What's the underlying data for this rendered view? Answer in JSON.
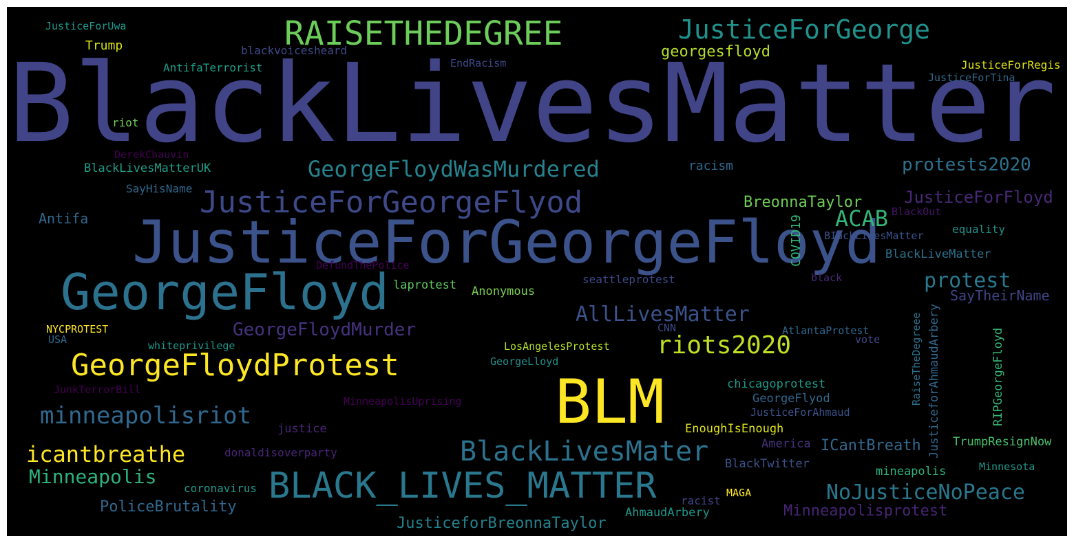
{
  "cloud": {
    "background": "#000000",
    "words": [
      {
        "text": "BlackLivesMatter",
        "color": "#414487"
      },
      {
        "text": "JusticeForGeorgeFloyd",
        "color": "#3b528b"
      },
      {
        "text": "GeorgeFloyd",
        "color": "#2c728e"
      },
      {
        "text": "BLM",
        "color": "#fde725"
      },
      {
        "text": "RAISETHEDEGREE",
        "color": "#6ccd5a"
      },
      {
        "text": "JusticeForGeorge",
        "color": "#21918c"
      },
      {
        "text": "JusticeForGeorgeFlyod",
        "color": "#3e4989"
      },
      {
        "text": "GeorgeFloydProtest",
        "color": "#fde725"
      },
      {
        "text": "BLACK_LIVES_MATTER",
        "color": "#2a788e"
      },
      {
        "text": "BlackLivesMater",
        "color": "#2c728e"
      },
      {
        "text": "GeorgeFloydWasMurdered",
        "color": "#26828e"
      },
      {
        "text": "riots2020",
        "color": "#c2df23"
      },
      {
        "text": "minneapolisriot",
        "color": "#31688e"
      },
      {
        "text": "icantbreathe",
        "color": "#fde725"
      },
      {
        "text": "Minneapolis",
        "color": "#2db27d"
      },
      {
        "text": "NoJusticeNoPeace",
        "color": "#2a788e"
      },
      {
        "text": "AllLivesMatter",
        "color": "#3b528b"
      },
      {
        "text": "GeorgeFloydMurder",
        "color": "#46327e"
      },
      {
        "text": "ACAB",
        "color": "#35b779"
      },
      {
        "text": "protest",
        "color": "#2a788e"
      },
      {
        "text": "protests2020",
        "color": "#2c728e"
      },
      {
        "text": "JusticeForFloyd",
        "color": "#482878"
      },
      {
        "text": "georgesfloyd",
        "color": "#b5de2b"
      },
      {
        "text": "JusticeforBreonnaTaylor",
        "color": "#26828e"
      },
      {
        "text": "PoliceBrutality",
        "color": "#31688e"
      },
      {
        "text": "BreonnaTaylor",
        "color": "#6ece58"
      },
      {
        "text": "ICantBreath",
        "color": "#31688e"
      },
      {
        "text": "Minneapolisprotest",
        "color": "#482475"
      },
      {
        "text": "SayTheirName",
        "color": "#414487"
      },
      {
        "text": "Trump",
        "color": "#d8e219"
      },
      {
        "text": "AntifaTerrorist",
        "color": "#1f9e89"
      },
      {
        "text": "blackvoicesheard",
        "color": "#3e4a89"
      },
      {
        "text": "JusticeForUwa",
        "color": "#1f988b"
      },
      {
        "text": "EndRacism",
        "color": "#3e4989"
      },
      {
        "text": "JusticeForRegis",
        "color": "#dde318"
      },
      {
        "text": "JusticeForTina",
        "color": "#31688e"
      },
      {
        "text": "riot",
        "color": "#6ece58"
      },
      {
        "text": "DerekChauvin",
        "color": "#440154"
      },
      {
        "text": "BlackLivesMatterUK",
        "color": "#1f9e89"
      },
      {
        "text": "SayHisName",
        "color": "#31688e"
      },
      {
        "text": "racism",
        "color": "#31688e"
      },
      {
        "text": "Antifa",
        "color": "#31688e"
      },
      {
        "text": "BlackOut",
        "color": "#481467"
      },
      {
        "text": "equality",
        "color": "#21918c"
      },
      {
        "text": "BIackLivesMatter",
        "color": "#3b528b"
      },
      {
        "text": "COVID19",
        "color": "#35b779",
        "vertical": true
      },
      {
        "text": "BlackLiveMatter",
        "color": "#2c728e"
      },
      {
        "text": "DefundThePolice",
        "color": "#440154"
      },
      {
        "text": "seattleprotest",
        "color": "#3e4989"
      },
      {
        "text": "black",
        "color": "#482878"
      },
      {
        "text": "laprotest",
        "color": "#5ec962"
      },
      {
        "text": "Anonymous",
        "color": "#7ad151"
      },
      {
        "text": "NYCPROTEST",
        "color": "#fde725"
      },
      {
        "text": "USA",
        "color": "#31688e"
      },
      {
        "text": "whiteprivilege",
        "color": "#1f988b"
      },
      {
        "text": "CNN",
        "color": "#3e4a89"
      },
      {
        "text": "LosAngelesProtest",
        "color": "#b5de2b"
      },
      {
        "text": "AtlantaProtest",
        "color": "#31688e"
      },
      {
        "text": "vote",
        "color": "#3e4a89"
      },
      {
        "text": "GeorgeLloyd",
        "color": "#21918c"
      },
      {
        "text": "RaiseTheDegreee",
        "color": "#2c728e",
        "vertical": true
      },
      {
        "text": "JusticeforAhmaudArbery",
        "color": "#31688e",
        "vertical": true
      },
      {
        "text": "RIPGeorgeFloyd",
        "color": "#35b779",
        "vertical": true
      },
      {
        "text": "JunkTerrorBill",
        "color": "#440154"
      },
      {
        "text": "MinneapolisUprising",
        "color": "#440154"
      },
      {
        "text": "chicagoprotest",
        "color": "#1f988b"
      },
      {
        "text": "GeorgeFlyod",
        "color": "#31688e"
      },
      {
        "text": "JusticeForAhmaud",
        "color": "#3b528b"
      },
      {
        "text": "justice",
        "color": "#482475"
      },
      {
        "text": "EnoughIsEnough",
        "color": "#dde318"
      },
      {
        "text": "donaldisoverparty",
        "color": "#482475"
      },
      {
        "text": "America",
        "color": "#46337e"
      },
      {
        "text": "BlackTwitter",
        "color": "#3b528b"
      },
      {
        "text": "TrumpResignNow",
        "color": "#4ac16d"
      },
      {
        "text": "mineapolis",
        "color": "#2db27d"
      },
      {
        "text": "Minnesota",
        "color": "#1f988b"
      },
      {
        "text": "coronavirus",
        "color": "#1f988b"
      },
      {
        "text": "MAGA",
        "color": "#fde725"
      },
      {
        "text": "racist",
        "color": "#414487"
      },
      {
        "text": "AhmaudArbery",
        "color": "#1f988b"
      }
    ]
  }
}
